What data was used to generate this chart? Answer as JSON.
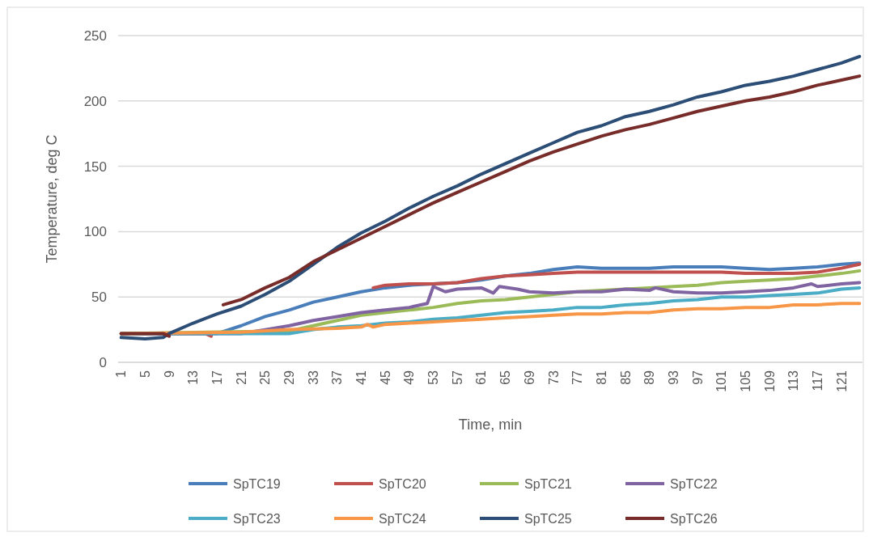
{
  "chart_data": {
    "type": "line",
    "xlabel": "Time, min",
    "ylabel": "Temperature, deg C",
    "xlim": [
      0.5,
      124.5
    ],
    "xticks": [
      1,
      5,
      9,
      13,
      17,
      21,
      25,
      29,
      33,
      37,
      41,
      45,
      49,
      53,
      57,
      61,
      65,
      69,
      73,
      77,
      81,
      85,
      89,
      93,
      97,
      101,
      105,
      109,
      113,
      117,
      121
    ],
    "ylim": [
      0,
      250
    ],
    "yticks": [
      0,
      50,
      100,
      150,
      200,
      250
    ],
    "grid": "y",
    "legend": "bottom",
    "marker": "none",
    "line_style": "solid",
    "series": [
      {
        "name": "SpTC19",
        "color": "#4a7ebb",
        "x": [
          1,
          9,
          17,
          21,
          25,
          29,
          33,
          37,
          41,
          45,
          49,
          53,
          57,
          61,
          65,
          69,
          73,
          77,
          81,
          85,
          89,
          93,
          97,
          101,
          105,
          109,
          113,
          117,
          121,
          124
        ],
        "values": [
          22,
          22,
          22,
          28,
          35,
          40,
          46,
          50,
          54,
          57,
          59,
          60,
          61,
          63,
          66,
          68,
          71,
          73,
          72,
          72,
          72,
          73,
          73,
          73,
          72,
          71,
          72,
          73,
          75,
          76
        ]
      },
      {
        "name": "SpTC20",
        "color": "#c0504d",
        "x": [
          1,
          9,
          15,
          16,
          17,
          43,
          45,
          49,
          53,
          57,
          61,
          65,
          69,
          73,
          77,
          81,
          85,
          89,
          93,
          97,
          101,
          105,
          109,
          113,
          117,
          121,
          124
        ],
        "values": [
          22,
          22,
          22,
          20,
          null,
          57,
          59,
          60,
          60,
          61,
          64,
          66,
          67,
          68,
          69,
          69,
          69,
          69,
          69,
          69,
          69,
          68,
          68,
          68,
          69,
          72,
          75
        ]
      },
      {
        "name": "SpTC21",
        "color": "#9bbb59",
        "x": [
          1,
          29,
          33,
          37,
          41,
          45,
          49,
          53,
          57,
          61,
          65,
          69,
          73,
          77,
          81,
          85,
          89,
          93,
          97,
          101,
          105,
          109,
          113,
          117,
          121,
          124
        ],
        "values": [
          22,
          24,
          28,
          32,
          36,
          38,
          40,
          42,
          45,
          47,
          48,
          50,
          52,
          54,
          55,
          56,
          57,
          58,
          59,
          61,
          62,
          63,
          64,
          66,
          68,
          70
        ]
      },
      {
        "name": "SpTC22",
        "color": "#8064a2",
        "x": [
          1,
          21,
          25,
          29,
          33,
          37,
          41,
          45,
          49,
          52,
          53,
          55,
          57,
          61,
          63,
          64,
          67,
          69,
          73,
          77,
          81,
          85,
          89,
          90,
          93,
          97,
          101,
          105,
          109,
          113,
          116,
          117,
          121,
          124
        ],
        "values": [
          22,
          22,
          25,
          28,
          32,
          35,
          38,
          40,
          42,
          45,
          58,
          54,
          56,
          57,
          53,
          58,
          56,
          54,
          53,
          54,
          54,
          56,
          55,
          57,
          54,
          53,
          53,
          54,
          55,
          57,
          60,
          58,
          60,
          61
        ]
      },
      {
        "name": "SpTC23",
        "color": "#4bacc6",
        "x": [
          1,
          29,
          33,
          37,
          41,
          45,
          49,
          53,
          57,
          61,
          65,
          69,
          73,
          77,
          81,
          85,
          89,
          93,
          97,
          101,
          105,
          109,
          113,
          117,
          121,
          124
        ],
        "values": [
          22,
          22,
          25,
          27,
          28,
          30,
          31,
          33,
          34,
          36,
          38,
          39,
          40,
          42,
          42,
          44,
          45,
          47,
          48,
          50,
          50,
          51,
          52,
          53,
          56,
          57
        ]
      },
      {
        "name": "SpTC24",
        "color": "#f79646",
        "x": [
          1,
          21,
          29,
          37,
          41,
          42,
          43,
          45,
          49,
          53,
          57,
          61,
          65,
          69,
          73,
          77,
          81,
          85,
          89,
          93,
          97,
          101,
          105,
          109,
          113,
          117,
          121,
          124
        ],
        "values": [
          22,
          23,
          25,
          26,
          27,
          29,
          27,
          29,
          30,
          31,
          32,
          33,
          34,
          35,
          36,
          37,
          37,
          38,
          38,
          40,
          41,
          41,
          42,
          42,
          44,
          44,
          45,
          45
        ]
      },
      {
        "name": "SpTC25",
        "color": "#2c4d75",
        "x": [
          1,
          5,
          8,
          9,
          13,
          17,
          21,
          25,
          29,
          33,
          37,
          41,
          45,
          49,
          53,
          57,
          61,
          65,
          69,
          73,
          77,
          81,
          85,
          89,
          93,
          97,
          101,
          105,
          109,
          113,
          117,
          121,
          124
        ],
        "values": [
          19,
          18,
          19,
          22,
          30,
          37,
          43,
          52,
          62,
          75,
          88,
          99,
          108,
          118,
          127,
          135,
          144,
          152,
          160,
          168,
          176,
          181,
          188,
          192,
          197,
          203,
          207,
          212,
          215,
          219,
          224,
          229,
          234
        ]
      },
      {
        "name": "SpTC26",
        "color": "#772c2a",
        "x": [
          1,
          8,
          9,
          10,
          18,
          21,
          25,
          29,
          33,
          37,
          41,
          45,
          49,
          53,
          57,
          61,
          65,
          69,
          73,
          77,
          81,
          85,
          89,
          93,
          97,
          101,
          105,
          109,
          113,
          117,
          121,
          124
        ],
        "values": [
          22,
          22,
          20,
          null,
          44,
          48,
          57,
          65,
          77,
          86,
          95,
          104,
          113,
          122,
          130,
          138,
          146,
          154,
          161,
          167,
          173,
          178,
          182,
          187,
          192,
          196,
          200,
          203,
          207,
          212,
          216,
          219
        ]
      }
    ]
  }
}
